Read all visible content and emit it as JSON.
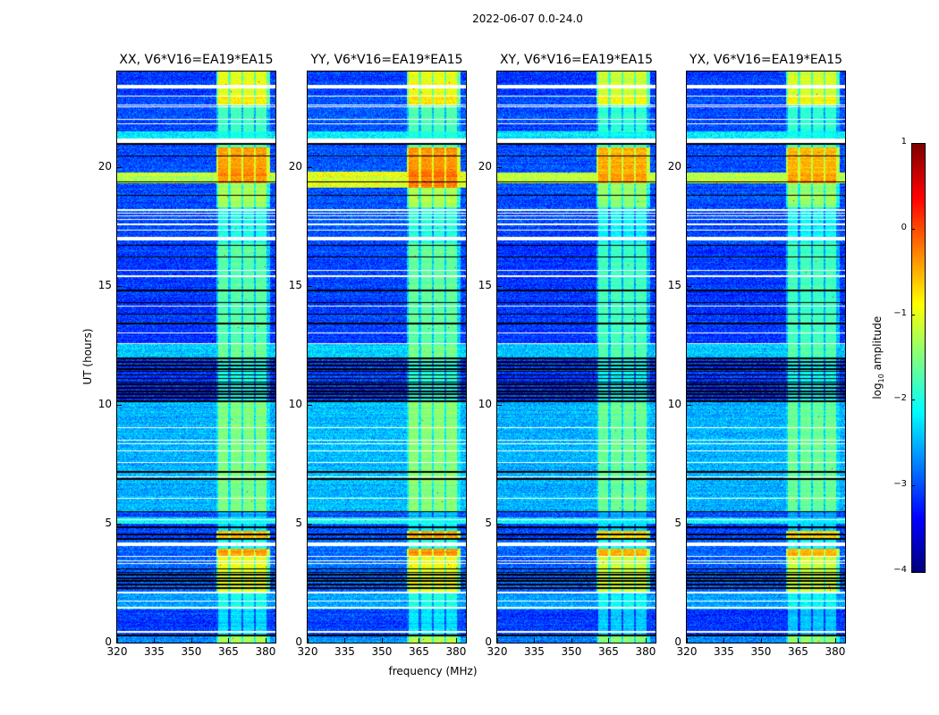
{
  "chart_data": {
    "type": "heatmap",
    "suptitle": "2022-06-07 0.0-24.0",
    "xlabel": "frequency (MHz)",
    "ylabel": "UT (hours)",
    "xlim": [
      320,
      384
    ],
    "ylim": [
      0,
      24
    ],
    "xticks": [
      "320",
      "335",
      "350",
      "365",
      "380"
    ],
    "xtick_values": [
      320,
      335,
      350,
      365,
      380
    ],
    "yticks": [
      "0",
      "5",
      "10",
      "15",
      "20"
    ],
    "ytick_values": [
      0,
      5,
      10,
      15,
      20
    ],
    "colormap": "jet",
    "colorbar": {
      "label_main": "log",
      "label_sub": "10",
      "label_tail": " amplitude",
      "range": [
        -4,
        1
      ],
      "ticks": [
        "−4",
        "−3",
        "−2",
        "−1",
        "0",
        "1"
      ],
      "tick_values": [
        -4,
        -3,
        -2,
        -1,
        0,
        1
      ]
    },
    "panels": [
      {
        "title": "XX, V6*V16=EA19*EA15",
        "bg_offset": 0.0,
        "rfi_offset": 0.0,
        "band_width_hours": 0.45
      },
      {
        "title": "YY, V6*V16=EA19*EA15",
        "bg_offset": 0.05,
        "rfi_offset": 0.05,
        "band_width_hours": 0.7
      },
      {
        "title": "XY, V6*V16=EA19*EA15",
        "bg_offset": 0.0,
        "rfi_offset": -0.1,
        "band_width_hours": 0.45
      },
      {
        "title": "YX, V6*V16=EA19*EA15",
        "bg_offset": 0.0,
        "rfi_offset": -0.1,
        "band_width_hours": 0.45
      }
    ],
    "rfi_channels_mhz": [
      [
        360.7,
        365.0
      ],
      [
        365.8,
        370.2
      ],
      [
        371.0,
        375.3
      ],
      [
        376.0,
        380.4
      ]
    ],
    "time_segments_log_amp": [
      {
        "t": [
          0.0,
          0.3
        ],
        "background": -2.7,
        "rfi": -1.3
      },
      {
        "t": [
          0.3,
          1.4
        ],
        "background": -3.1,
        "rfi": -2.3
      },
      {
        "t": [
          1.4,
          2.1
        ],
        "background": -2.6,
        "rfi": -2.0
      },
      {
        "t": [
          2.1,
          3.6
        ],
        "background": -2.9,
        "rfi": -1.0
      },
      {
        "t": [
          3.6,
          3.95
        ],
        "background": -2.9,
        "rfi": -0.4
      },
      {
        "t": [
          3.95,
          4.35
        ],
        "background": -2.9,
        "rfi": -2.0
      },
      {
        "t": [
          4.35,
          4.7
        ],
        "background": -3.0,
        "rfi": -0.5
      },
      {
        "t": [
          4.7,
          5.0
        ],
        "background": -3.0,
        "rfi": -2.2
      },
      {
        "t": [
          5.0,
          5.25
        ],
        "background": -2.1,
        "rfi": -2.1
      },
      {
        "t": [
          5.25,
          5.5
        ],
        "background": -3.0,
        "rfi": -2.5
      },
      {
        "t": [
          5.5,
          10.1
        ],
        "background": -2.5,
        "rfi": -1.5
      },
      {
        "t": [
          10.1,
          12.0
        ],
        "background": -3.1,
        "rfi": -2.0
      },
      {
        "t": [
          12.0,
          12.6
        ],
        "background": -2.4,
        "rfi": -1.6
      },
      {
        "t": [
          12.6,
          16.8
        ],
        "background": -3.1,
        "rfi": -1.7
      },
      {
        "t": [
          16.8,
          18.3
        ],
        "background": -3.0,
        "rfi": -2.0
      },
      {
        "t": [
          18.3,
          19.3
        ],
        "background": -3.0,
        "rfi": -1.3
      },
      {
        "t": [
          19.3,
          19.75
        ],
        "background": -1.2,
        "rfi": -0.3
      },
      {
        "t": [
          19.75,
          20.8
        ],
        "background": -3.0,
        "rfi": -0.4
      },
      {
        "t": [
          20.8,
          21.2
        ],
        "background": -3.0,
        "rfi": -1.6
      },
      {
        "t": [
          21.2,
          21.5
        ],
        "background": -2.2,
        "rfi": -2.0
      },
      {
        "t": [
          21.5,
          22.6
        ],
        "background": -3.0,
        "rfi": -1.8
      },
      {
        "t": [
          22.6,
          23.0
        ],
        "background": -3.0,
        "rfi": -0.8
      },
      {
        "t": [
          23.0,
          24.0
        ],
        "background": -3.1,
        "rfi": -1.0
      }
    ],
    "flagged_hours": [
      [
        0.42,
        0.48
      ],
      [
        1.44,
        1.49
      ],
      [
        1.71,
        1.76
      ],
      [
        2.08,
        2.13
      ],
      [
        3.32,
        3.36
      ],
      [
        3.43,
        3.47
      ],
      [
        3.62,
        3.66
      ],
      [
        4.06,
        4.2
      ],
      [
        5.13,
        5.18
      ],
      [
        6.06,
        6.1
      ],
      [
        6.96,
        7.0
      ],
      [
        7.56,
        7.6
      ],
      [
        8.05,
        8.09
      ],
      [
        8.35,
        8.39
      ],
      [
        8.47,
        8.51
      ],
      [
        9.03,
        9.07
      ],
      [
        12.53,
        12.57
      ],
      [
        12.98,
        13.02
      ],
      [
        14.13,
        14.17
      ],
      [
        15.38,
        15.42
      ],
      [
        15.63,
        15.67
      ],
      [
        16.9,
        17.05
      ],
      [
        17.3,
        17.35
      ],
      [
        17.55,
        17.6
      ],
      [
        17.75,
        17.8
      ],
      [
        17.9,
        17.95
      ],
      [
        18.02,
        18.07
      ],
      [
        18.15,
        18.2
      ],
      [
        21.0,
        21.2
      ],
      [
        21.8,
        21.84
      ],
      [
        21.98,
        22.02
      ],
      [
        22.5,
        22.55
      ],
      [
        22.58,
        22.62
      ],
      [
        22.93,
        22.97
      ],
      [
        23.3,
        23.45
      ]
    ],
    "dropout_hours": [
      0.3,
      2.3,
      2.45,
      2.6,
      2.7,
      2.85,
      2.95,
      3.1,
      4.35,
      4.54,
      4.84,
      5.5,
      6.87,
      7.17,
      10.15,
      10.3,
      10.45,
      10.55,
      10.7,
      10.85,
      10.95,
      11.1,
      11.25,
      11.4,
      11.5,
      11.65,
      11.8,
      11.95,
      13.4,
      13.8,
      14.3,
      14.8,
      16.2,
      16.7,
      18.8,
      19.37,
      20.45,
      20.95
    ]
  }
}
